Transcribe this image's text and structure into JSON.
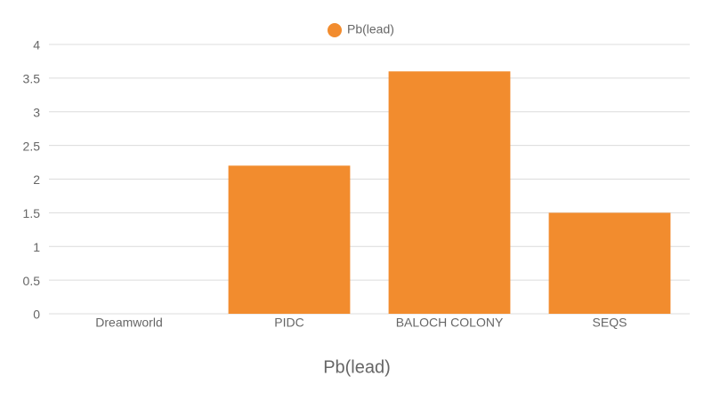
{
  "chart_data": {
    "type": "bar",
    "x_label": "Pb(lead)",
    "categories": [
      "Dreamworld",
      "PIDC",
      "BALOCH COLONY",
      "SEQS"
    ],
    "series": [
      {
        "name": "Pb(lead)",
        "color": "#f28c2e",
        "values": [
          0,
          2.2,
          3.6,
          1.5
        ]
      }
    ],
    "ylim": [
      0,
      4
    ],
    "yticks": [
      0,
      0.5,
      1,
      1.5,
      2,
      2.5,
      3,
      3.5,
      4
    ],
    "grid": true,
    "legend": "top"
  }
}
